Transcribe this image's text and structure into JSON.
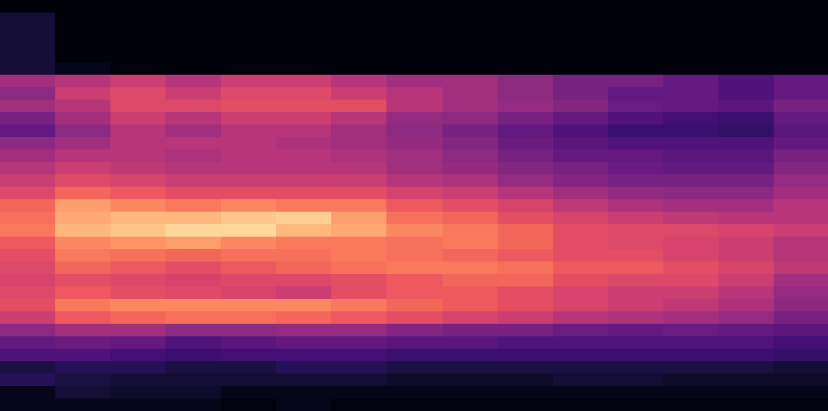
{
  "chart_data": {
    "type": "heatmap",
    "color": "magma",
    "tick_labels": false,
    "grid": false,
    "color_range": [
      0,
      1
    ],
    "cells": [
      [
        0.02,
        0.02,
        0.02,
        0.02,
        0.02,
        0.02,
        0.02,
        0.02,
        0.02,
        0.02,
        0.02,
        0.02,
        0.02,
        0.02,
        0.02
      ],
      [
        0.1,
        0.02,
        0.02,
        0.02,
        0.02,
        0.02,
        0.02,
        0.02,
        0.02,
        0.02,
        0.02,
        0.02,
        0.02,
        0.02,
        0.02
      ],
      [
        0.1,
        0.02,
        0.02,
        0.02,
        0.02,
        0.02,
        0.02,
        0.02,
        0.02,
        0.02,
        0.02,
        0.02,
        0.02,
        0.02,
        0.02
      ],
      [
        0.1,
        0.02,
        0.02,
        0.02,
        0.02,
        0.02,
        0.02,
        0.02,
        0.02,
        0.02,
        0.02,
        0.02,
        0.02,
        0.02,
        0.02
      ],
      [
        0.1,
        0.02,
        0.02,
        0.02,
        0.02,
        0.02,
        0.02,
        0.02,
        0.02,
        0.02,
        0.02,
        0.02,
        0.02,
        0.02,
        0.02
      ],
      [
        0.1,
        0.05,
        0.02,
        0.02,
        0.02,
        0.02,
        0.02,
        0.02,
        0.02,
        0.02,
        0.02,
        0.02,
        0.02,
        0.02,
        0.02
      ],
      [
        0.45,
        0.5,
        0.55,
        0.5,
        0.55,
        0.55,
        0.5,
        0.45,
        0.45,
        0.4,
        0.35,
        0.35,
        0.3,
        0.25,
        0.3
      ],
      [
        0.4,
        0.55,
        0.6,
        0.55,
        0.6,
        0.6,
        0.55,
        0.5,
        0.45,
        0.4,
        0.35,
        0.3,
        0.3,
        0.25,
        0.3
      ],
      [
        0.45,
        0.5,
        0.6,
        0.6,
        0.62,
        0.62,
        0.62,
        0.5,
        0.45,
        0.42,
        0.38,
        0.32,
        0.3,
        0.28,
        0.35
      ],
      [
        0.35,
        0.45,
        0.55,
        0.5,
        0.55,
        0.55,
        0.5,
        0.42,
        0.4,
        0.35,
        0.3,
        0.25,
        0.22,
        0.2,
        0.3
      ],
      [
        0.3,
        0.4,
        0.5,
        0.45,
        0.5,
        0.5,
        0.45,
        0.4,
        0.35,
        0.3,
        0.25,
        0.2,
        0.2,
        0.18,
        0.28
      ],
      [
        0.4,
        0.45,
        0.5,
        0.5,
        0.5,
        0.48,
        0.45,
        0.42,
        0.38,
        0.32,
        0.28,
        0.25,
        0.25,
        0.25,
        0.3
      ],
      [
        0.45,
        0.5,
        0.5,
        0.48,
        0.5,
        0.5,
        0.48,
        0.45,
        0.4,
        0.35,
        0.3,
        0.3,
        0.28,
        0.28,
        0.35
      ],
      [
        0.5,
        0.55,
        0.52,
        0.5,
        0.5,
        0.5,
        0.5,
        0.45,
        0.42,
        0.38,
        0.35,
        0.32,
        0.3,
        0.3,
        0.38
      ],
      [
        0.55,
        0.6,
        0.58,
        0.55,
        0.55,
        0.55,
        0.55,
        0.5,
        0.48,
        0.42,
        0.38,
        0.35,
        0.35,
        0.35,
        0.42
      ],
      [
        0.6,
        0.68,
        0.65,
        0.62,
        0.62,
        0.62,
        0.62,
        0.58,
        0.55,
        0.5,
        0.45,
        0.42,
        0.4,
        0.4,
        0.45
      ],
      [
        0.68,
        0.8,
        0.75,
        0.72,
        0.75,
        0.72,
        0.72,
        0.65,
        0.62,
        0.58,
        0.52,
        0.48,
        0.45,
        0.45,
        0.5
      ],
      [
        0.7,
        0.82,
        0.85,
        0.85,
        0.88,
        0.9,
        0.8,
        0.7,
        0.68,
        0.62,
        0.58,
        0.55,
        0.52,
        0.5,
        0.5
      ],
      [
        0.72,
        0.85,
        0.88,
        0.92,
        0.92,
        0.85,
        0.82,
        0.75,
        0.72,
        0.68,
        0.62,
        0.6,
        0.6,
        0.58,
        0.55
      ],
      [
        0.65,
        0.75,
        0.78,
        0.8,
        0.75,
        0.72,
        0.72,
        0.7,
        0.72,
        0.68,
        0.62,
        0.6,
        0.58,
        0.55,
        0.5
      ],
      [
        0.62,
        0.72,
        0.7,
        0.68,
        0.7,
        0.7,
        0.72,
        0.7,
        0.68,
        0.65,
        0.62,
        0.62,
        0.58,
        0.55,
        0.5
      ],
      [
        0.6,
        0.68,
        0.65,
        0.62,
        0.65,
        0.68,
        0.7,
        0.72,
        0.72,
        0.7,
        0.65,
        0.65,
        0.62,
        0.58,
        0.52
      ],
      [
        0.58,
        0.62,
        0.6,
        0.58,
        0.6,
        0.6,
        0.62,
        0.65,
        0.68,
        0.68,
        0.62,
        0.6,
        0.6,
        0.55,
        0.45
      ],
      [
        0.6,
        0.65,
        0.62,
        0.6,
        0.58,
        0.55,
        0.62,
        0.65,
        0.65,
        0.62,
        0.58,
        0.55,
        0.55,
        0.5,
        0.42
      ],
      [
        0.62,
        0.72,
        0.75,
        0.75,
        0.75,
        0.75,
        0.72,
        0.68,
        0.65,
        0.62,
        0.58,
        0.55,
        0.52,
        0.48,
        0.4
      ],
      [
        0.55,
        0.65,
        0.68,
        0.7,
        0.7,
        0.68,
        0.65,
        0.62,
        0.58,
        0.55,
        0.5,
        0.48,
        0.45,
        0.42,
        0.35
      ],
      [
        0.4,
        0.45,
        0.45,
        0.4,
        0.4,
        0.42,
        0.42,
        0.38,
        0.35,
        0.35,
        0.32,
        0.3,
        0.32,
        0.3,
        0.28
      ],
      [
        0.3,
        0.32,
        0.3,
        0.25,
        0.28,
        0.3,
        0.3,
        0.28,
        0.28,
        0.25,
        0.25,
        0.25,
        0.25,
        0.25,
        0.22
      ],
      [
        0.25,
        0.25,
        0.22,
        0.2,
        0.22,
        0.22,
        0.22,
        0.2,
        0.2,
        0.2,
        0.2,
        0.2,
        0.2,
        0.2,
        0.18
      ],
      [
        0.12,
        0.15,
        0.15,
        0.12,
        0.12,
        0.15,
        0.15,
        0.12,
        0.12,
        0.12,
        0.12,
        0.12,
        0.12,
        0.12,
        0.1
      ],
      [
        0.15,
        0.12,
        0.1,
        0.1,
        0.1,
        0.1,
        0.1,
        0.08,
        0.08,
        0.08,
        0.1,
        0.1,
        0.08,
        0.08,
        0.08
      ],
      [
        0.05,
        0.1,
        0.08,
        0.08,
        0.05,
        0.05,
        0.05,
        0.05,
        0.05,
        0.05,
        0.05,
        0.05,
        0.05,
        0.05,
        0.05
      ],
      [
        0.05,
        0.05,
        0.05,
        0.05,
        0.03,
        0.05,
        0.03,
        0.03,
        0.03,
        0.03,
        0.03,
        0.03,
        0.03,
        0.03,
        0.03
      ]
    ]
  }
}
